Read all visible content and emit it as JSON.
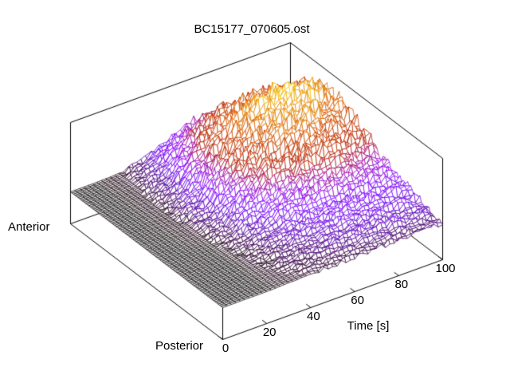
{
  "chart_data": {
    "type": "surface",
    "title": "BC15177_070605.ost",
    "background_color": "#ffffff",
    "box_color": "#000000",
    "x_axis": {
      "label": "Time [s]",
      "range": [
        0,
        100
      ],
      "ticks": [
        "0",
        "20",
        "40",
        "60",
        "80",
        "100"
      ],
      "tick_values": [
        0,
        20,
        40,
        60,
        80,
        100
      ]
    },
    "y_axis": {
      "label_near": "Posterior",
      "label_far": "Anterior",
      "ticks": []
    },
    "z_axis": {
      "ticks": [],
      "data_floor_fraction": 0.315
    },
    "legend": "none",
    "grid": "off",
    "palette": {
      "name": "gnuplot default pm3d (rgbformulae 7,5,15)",
      "stops": [
        "#000000",
        "#5a00b4",
        "#8004ff",
        "#9c0db4",
        "#b42000",
        "#c93e00",
        "#dd6c00",
        "#efab00",
        "#ffff00"
      ]
    },
    "mesh_grid": {
      "time_lines": 51,
      "position_lines": 101
    },
    "surface_matrix": {
      "comment": "normalized height z (0=flat baseline/black, 1=color-scale max/yellow), estimated from pixels",
      "t": [
        0,
        10,
        20,
        30,
        40,
        50,
        60,
        70,
        80,
        90,
        100
      ],
      "v": [
        0,
        0.125,
        0.25,
        0.375,
        0.5,
        0.625,
        0.75,
        0.875,
        1
      ],
      "v_orientation": "0 = Posterior (front edge), 1 = Anterior (back-left edge)",
      "z_normalized": [
        [
          0,
          0,
          0,
          0.01,
          0.02,
          0.03,
          0.04,
          0.05,
          0.05,
          0.05,
          0.04
        ],
        [
          0,
          0,
          0,
          0.02,
          0.05,
          0.09,
          0.11,
          0.12,
          0.13,
          0.12,
          0.11
        ],
        [
          0,
          0,
          0,
          0.03,
          0.09,
          0.15,
          0.18,
          0.2,
          0.21,
          0.2,
          0.18
        ],
        [
          0,
          0,
          0,
          0.06,
          0.17,
          0.27,
          0.33,
          0.37,
          0.38,
          0.35,
          0.32
        ],
        [
          0,
          0,
          0.01,
          0.09,
          0.27,
          0.42,
          0.52,
          0.57,
          0.59,
          0.55,
          0.5
        ],
        [
          0,
          0,
          0.01,
          0.12,
          0.35,
          0.56,
          0.68,
          0.76,
          0.78,
          0.73,
          0.66
        ],
        [
          0,
          0,
          0.01,
          0.13,
          0.39,
          0.62,
          0.77,
          0.85,
          0.9,
          0.82,
          0.74
        ],
        [
          0,
          0,
          0.01,
          0.1,
          0.3,
          0.48,
          0.6,
          0.67,
          0.69,
          0.64,
          0.58
        ],
        [
          0,
          0,
          0.01,
          0.07,
          0.2,
          0.31,
          0.38,
          0.42,
          0.44,
          0.41,
          0.37
        ]
      ]
    },
    "detail_noise": {
      "jitter_multiplicative": 0.15,
      "jitter_additive": 0.07,
      "fringe_amplitude": 0.12,
      "fringe_center_v": 0.2,
      "fringe_width_v": 0.18
    }
  }
}
